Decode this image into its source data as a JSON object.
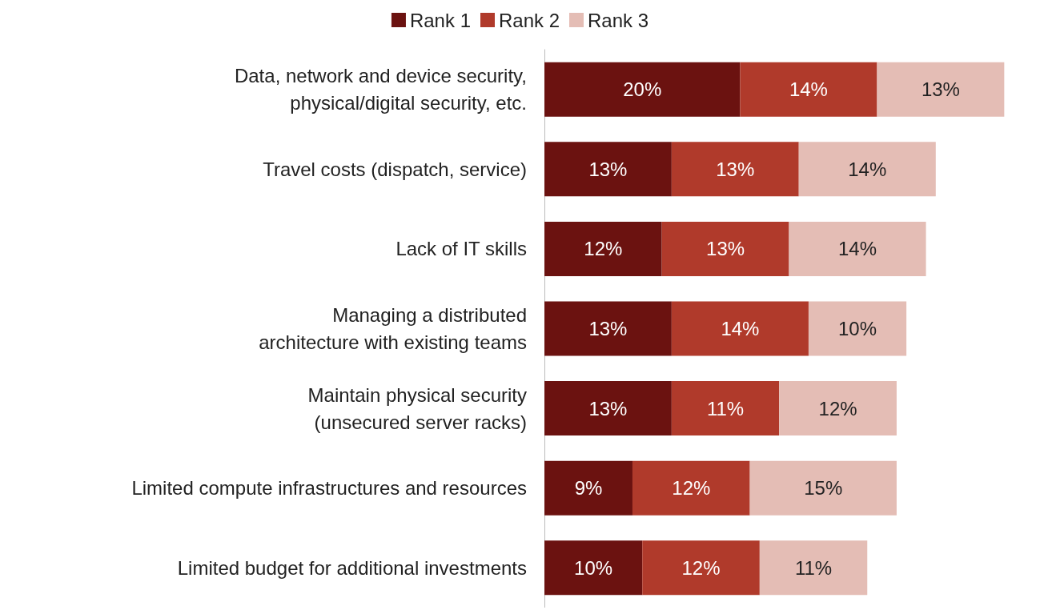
{
  "chart_data": {
    "type": "bar",
    "orientation": "horizontal",
    "stacked": true,
    "legend": "top",
    "categories": [
      "Data, network and device security,\nphysical/digital security, etc.",
      "Travel costs (dispatch, service)",
      "Lack of IT skills",
      "Managing a distributed\narchitecture with existing teams",
      "Maintain physical security\n(unsecured server racks)",
      "Limited compute infrastructures and resources",
      "Limited budget for additional investments"
    ],
    "series": [
      {
        "name": "Rank 1",
        "color": "#6b1210",
        "values": [
          20,
          13,
          12,
          13,
          13,
          9,
          10
        ],
        "value_labels": [
          "20%",
          "13%",
          "12%",
          "13%",
          "13%",
          "9%",
          "10%"
        ]
      },
      {
        "name": "Rank 2",
        "color": "#b03a2b",
        "values": [
          14,
          13,
          13,
          14,
          11,
          12,
          12
        ],
        "value_labels": [
          "14%",
          "13%",
          "13%",
          "14%",
          "11%",
          "12%",
          "12%"
        ]
      },
      {
        "name": "Rank 3",
        "color": "#e4bdb5",
        "values": [
          13,
          14,
          14,
          10,
          12,
          15,
          11
        ],
        "value_labels": [
          "13%",
          "14%",
          "14%",
          "10%",
          "12%",
          "15%",
          "11%"
        ]
      }
    ]
  }
}
